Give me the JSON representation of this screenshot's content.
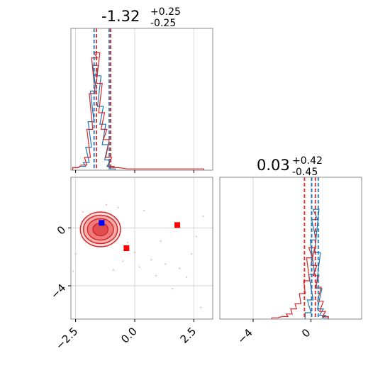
{
  "chart_data": [
    {
      "type": "histogram",
      "panel": "top-left",
      "title": {
        "value": "-1.32",
        "plus": "+0.25",
        "minus": "-0.25"
      },
      "x_range": [
        -2.7,
        3.3
      ],
      "x_grid": [
        -2.5,
        0.0,
        2.5
      ],
      "grid": true,
      "series": [
        {
          "color": "#1f77b4",
          "bins": [
            [
              -2.5,
              0.02
            ],
            [
              -2.2,
              0.03
            ],
            [
              -2.05,
              0.06
            ],
            [
              -1.95,
              0.18
            ],
            [
              -1.85,
              0.38
            ],
            [
              -1.75,
              0.62
            ],
            [
              -1.65,
              0.82
            ],
            [
              -1.55,
              0.74
            ],
            [
              -1.45,
              0.5
            ],
            [
              -1.35,
              0.36
            ],
            [
              -1.25,
              0.2
            ],
            [
              -1.15,
              0.08
            ],
            [
              -1.05,
              0.03
            ],
            [
              -0.95,
              0.01
            ]
          ]
        },
        {
          "color": "#d62728",
          "bins": [
            [
              -2.5,
              0.02
            ],
            [
              -2.15,
              0.04
            ],
            [
              -2.0,
              0.1
            ],
            [
              -1.9,
              0.32
            ],
            [
              -1.8,
              0.6
            ],
            [
              -1.7,
              0.88
            ],
            [
              -1.6,
              0.92
            ],
            [
              -1.5,
              0.68
            ],
            [
              -1.4,
              0.45
            ],
            [
              -1.3,
              0.32
            ],
            [
              -1.2,
              0.24
            ],
            [
              -1.1,
              0.1
            ],
            [
              -1.0,
              0.03
            ],
            [
              -0.8,
              0.02
            ],
            [
              -0.2,
              0.01
            ],
            [
              0.5,
              0.01
            ],
            [
              2.2,
              0.01
            ],
            [
              2.8,
              0.01
            ]
          ]
        }
      ],
      "quantile_lines": [
        {
          "x": -1.72,
          "color": "#1f77b4"
        },
        {
          "x": -1.62,
          "color": "#d62728"
        },
        {
          "x": -1.08,
          "color": "#1f77b4"
        },
        {
          "x": -1.02,
          "color": "#d62728"
        }
      ]
    },
    {
      "type": "contour",
      "panel": "bottom-left",
      "x_range": [
        -2.7,
        3.3
      ],
      "y_range": [
        -6.3,
        3.5
      ],
      "x_ticks": [
        "−2.5",
        "0.0",
        "2.5"
      ],
      "x_tick_values": [
        -2.5,
        0.0,
        2.5
      ],
      "y_ticks": [
        "0",
        "−4"
      ],
      "y_tick_values": [
        0,
        -4
      ],
      "grid": true,
      "contours": [
        {
          "color": "#1f77b4",
          "cx": -1.45,
          "cy": 0.35,
          "levels": [
            [
              0.7,
              0.5
            ],
            [
              0.55,
              0.38
            ],
            [
              0.4,
              0.26
            ],
            [
              0.22,
              0.14
            ]
          ]
        },
        {
          "color": "#d62728",
          "cx": -1.45,
          "cy": -0.1,
          "levels": [
            [
              0.85,
              1.2
            ],
            [
              0.72,
              0.98
            ],
            [
              0.55,
              0.74
            ],
            [
              0.32,
              0.44
            ]
          ]
        }
      ],
      "markers": [
        {
          "x": -1.4,
          "y": 0.35,
          "color": "#0000ff"
        },
        {
          "x": -0.35,
          "y": -1.4,
          "color": "#ff0000"
        },
        {
          "x": 1.8,
          "y": 0.2,
          "color": "#ff0000"
        }
      ],
      "scatter": [
        [
          -0.3,
          -1.0
        ],
        [
          -0.5,
          -2.3
        ],
        [
          0.2,
          -2.7
        ],
        [
          0.7,
          -2.2
        ],
        [
          1.3,
          -2.5
        ],
        [
          0.9,
          -3.3
        ],
        [
          1.6,
          -4.2
        ],
        [
          2.4,
          -1.8
        ],
        [
          2.9,
          0.8
        ],
        [
          2.6,
          -0.6
        ],
        [
          0.4,
          1.2
        ],
        [
          1.1,
          -0.9
        ],
        [
          -2.6,
          -3.0
        ],
        [
          2.8,
          -5.5
        ],
        [
          -0.9,
          -2.9
        ],
        [
          0.0,
          -1.7
        ],
        [
          1.9,
          -2.8
        ],
        [
          2.2,
          -3.4
        ],
        [
          -1.2,
          1.6
        ],
        [
          -0.7,
          1.4
        ],
        [
          -2.2,
          1.1
        ],
        [
          -2.5,
          -1.8
        ]
      ]
    },
    {
      "type": "histogram",
      "panel": "bottom-right",
      "title": {
        "value": "0.03",
        "plus": "+0.42",
        "minus": "-0.45"
      },
      "x_range": [
        -6.3,
        3.5
      ],
      "x_ticks": [
        "−4",
        "0"
      ],
      "x_tick_values": [
        -4,
        0
      ],
      "grid": true,
      "series": [
        {
          "color": "#1f77b4",
          "bins": [
            [
              -0.2,
              0.05
            ],
            [
              -0.05,
              0.15
            ],
            [
              0.05,
              0.35
            ],
            [
              0.15,
              0.62
            ],
            [
              0.25,
              0.78
            ],
            [
              0.35,
              0.86
            ],
            [
              0.45,
              0.52
            ],
            [
              0.55,
              0.24
            ],
            [
              0.65,
              0.08
            ],
            [
              0.8,
              0.03
            ],
            [
              1.0,
              0.01
            ]
          ]
        },
        {
          "color": "#d62728",
          "bins": [
            [
              -2.5,
              0.01
            ],
            [
              -1.8,
              0.02
            ],
            [
              -1.5,
              0.04
            ],
            [
              -1.2,
              0.08
            ],
            [
              -0.9,
              0.12
            ],
            [
              -0.6,
              0.2
            ],
            [
              -0.3,
              0.3
            ],
            [
              -0.1,
              0.48
            ],
            [
              0.05,
              0.56
            ],
            [
              0.2,
              0.42
            ],
            [
              0.35,
              0.34
            ],
            [
              0.5,
              0.25
            ],
            [
              0.65,
              0.14
            ],
            [
              0.8,
              0.06
            ],
            [
              1.0,
              0.02
            ]
          ]
        }
      ],
      "quantile_lines": [
        {
          "x": -0.45,
          "color": "#d62728"
        },
        {
          "x": 0.05,
          "color": "#1f77b4"
        },
        {
          "x": 0.3,
          "color": "#d62728"
        },
        {
          "x": 0.5,
          "color": "#1f77b4"
        }
      ]
    }
  ]
}
